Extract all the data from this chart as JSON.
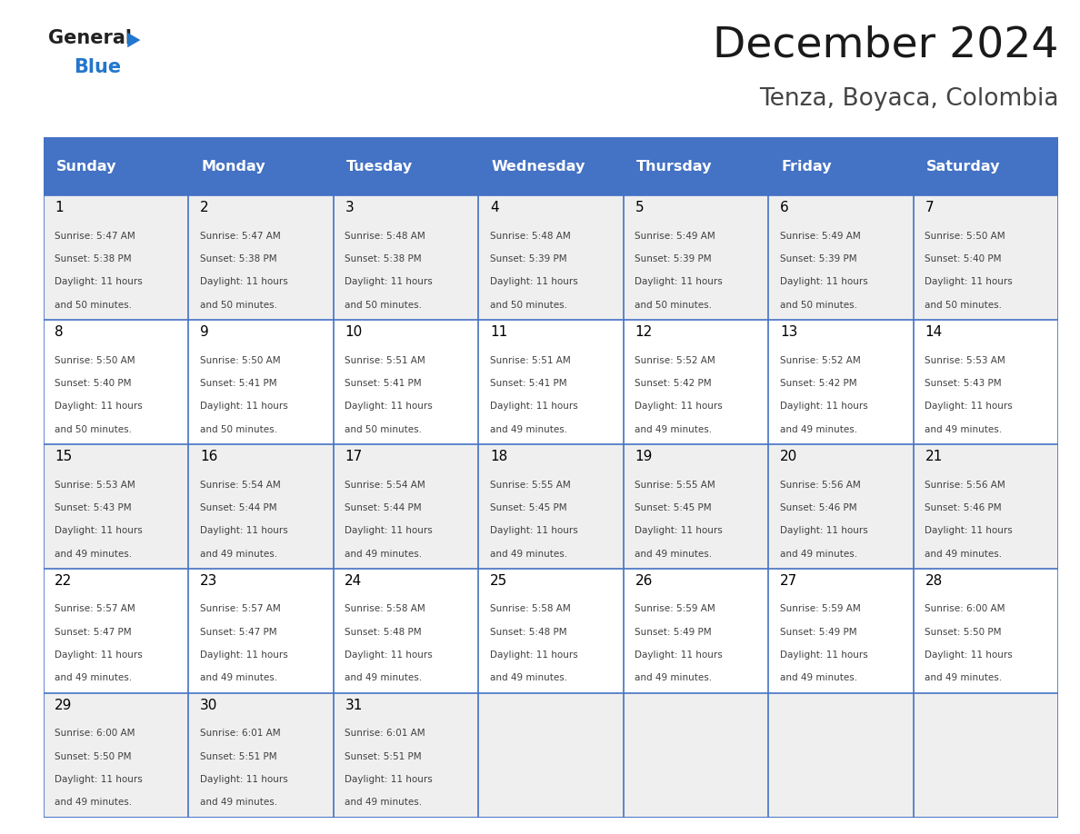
{
  "title": "December 2024",
  "subtitle": "Tenza, Boyaca, Colombia",
  "days_of_week": [
    "Sunday",
    "Monday",
    "Tuesday",
    "Wednesday",
    "Thursday",
    "Friday",
    "Saturday"
  ],
  "header_bg": "#4472C4",
  "header_text_color": "#FFFFFF",
  "cell_bg_even": "#EFEFEF",
  "cell_bg_odd": "#FFFFFF",
  "day_num_color": "#000000",
  "cell_text_color": "#404040",
  "grid_line_color": "#4472C4",
  "title_color": "#1a1a1a",
  "subtitle_color": "#444444",
  "weeks": [
    [
      {
        "day": 1,
        "sunrise": "5:47 AM",
        "sunset": "5:38 PM",
        "daylight_hours": 11,
        "daylight_minutes": 50
      },
      {
        "day": 2,
        "sunrise": "5:47 AM",
        "sunset": "5:38 PM",
        "daylight_hours": 11,
        "daylight_minutes": 50
      },
      {
        "day": 3,
        "sunrise": "5:48 AM",
        "sunset": "5:38 PM",
        "daylight_hours": 11,
        "daylight_minutes": 50
      },
      {
        "day": 4,
        "sunrise": "5:48 AM",
        "sunset": "5:39 PM",
        "daylight_hours": 11,
        "daylight_minutes": 50
      },
      {
        "day": 5,
        "sunrise": "5:49 AM",
        "sunset": "5:39 PM",
        "daylight_hours": 11,
        "daylight_minutes": 50
      },
      {
        "day": 6,
        "sunrise": "5:49 AM",
        "sunset": "5:39 PM",
        "daylight_hours": 11,
        "daylight_minutes": 50
      },
      {
        "day": 7,
        "sunrise": "5:50 AM",
        "sunset": "5:40 PM",
        "daylight_hours": 11,
        "daylight_minutes": 50
      }
    ],
    [
      {
        "day": 8,
        "sunrise": "5:50 AM",
        "sunset": "5:40 PM",
        "daylight_hours": 11,
        "daylight_minutes": 50
      },
      {
        "day": 9,
        "sunrise": "5:50 AM",
        "sunset": "5:41 PM",
        "daylight_hours": 11,
        "daylight_minutes": 50
      },
      {
        "day": 10,
        "sunrise": "5:51 AM",
        "sunset": "5:41 PM",
        "daylight_hours": 11,
        "daylight_minutes": 50
      },
      {
        "day": 11,
        "sunrise": "5:51 AM",
        "sunset": "5:41 PM",
        "daylight_hours": 11,
        "daylight_minutes": 49
      },
      {
        "day": 12,
        "sunrise": "5:52 AM",
        "sunset": "5:42 PM",
        "daylight_hours": 11,
        "daylight_minutes": 49
      },
      {
        "day": 13,
        "sunrise": "5:52 AM",
        "sunset": "5:42 PM",
        "daylight_hours": 11,
        "daylight_minutes": 49
      },
      {
        "day": 14,
        "sunrise": "5:53 AM",
        "sunset": "5:43 PM",
        "daylight_hours": 11,
        "daylight_minutes": 49
      }
    ],
    [
      {
        "day": 15,
        "sunrise": "5:53 AM",
        "sunset": "5:43 PM",
        "daylight_hours": 11,
        "daylight_minutes": 49
      },
      {
        "day": 16,
        "sunrise": "5:54 AM",
        "sunset": "5:44 PM",
        "daylight_hours": 11,
        "daylight_minutes": 49
      },
      {
        "day": 17,
        "sunrise": "5:54 AM",
        "sunset": "5:44 PM",
        "daylight_hours": 11,
        "daylight_minutes": 49
      },
      {
        "day": 18,
        "sunrise": "5:55 AM",
        "sunset": "5:45 PM",
        "daylight_hours": 11,
        "daylight_minutes": 49
      },
      {
        "day": 19,
        "sunrise": "5:55 AM",
        "sunset": "5:45 PM",
        "daylight_hours": 11,
        "daylight_minutes": 49
      },
      {
        "day": 20,
        "sunrise": "5:56 AM",
        "sunset": "5:46 PM",
        "daylight_hours": 11,
        "daylight_minutes": 49
      },
      {
        "day": 21,
        "sunrise": "5:56 AM",
        "sunset": "5:46 PM",
        "daylight_hours": 11,
        "daylight_minutes": 49
      }
    ],
    [
      {
        "day": 22,
        "sunrise": "5:57 AM",
        "sunset": "5:47 PM",
        "daylight_hours": 11,
        "daylight_minutes": 49
      },
      {
        "day": 23,
        "sunrise": "5:57 AM",
        "sunset": "5:47 PM",
        "daylight_hours": 11,
        "daylight_minutes": 49
      },
      {
        "day": 24,
        "sunrise": "5:58 AM",
        "sunset": "5:48 PM",
        "daylight_hours": 11,
        "daylight_minutes": 49
      },
      {
        "day": 25,
        "sunrise": "5:58 AM",
        "sunset": "5:48 PM",
        "daylight_hours": 11,
        "daylight_minutes": 49
      },
      {
        "day": 26,
        "sunrise": "5:59 AM",
        "sunset": "5:49 PM",
        "daylight_hours": 11,
        "daylight_minutes": 49
      },
      {
        "day": 27,
        "sunrise": "5:59 AM",
        "sunset": "5:49 PM",
        "daylight_hours": 11,
        "daylight_minutes": 49
      },
      {
        "day": 28,
        "sunrise": "6:00 AM",
        "sunset": "5:50 PM",
        "daylight_hours": 11,
        "daylight_minutes": 49
      }
    ],
    [
      {
        "day": 29,
        "sunrise": "6:00 AM",
        "sunset": "5:50 PM",
        "daylight_hours": 11,
        "daylight_minutes": 49
      },
      {
        "day": 30,
        "sunrise": "6:01 AM",
        "sunset": "5:51 PM",
        "daylight_hours": 11,
        "daylight_minutes": 49
      },
      {
        "day": 31,
        "sunrise": "6:01 AM",
        "sunset": "5:51 PM",
        "daylight_hours": 11,
        "daylight_minutes": 49
      },
      null,
      null,
      null,
      null
    ]
  ]
}
